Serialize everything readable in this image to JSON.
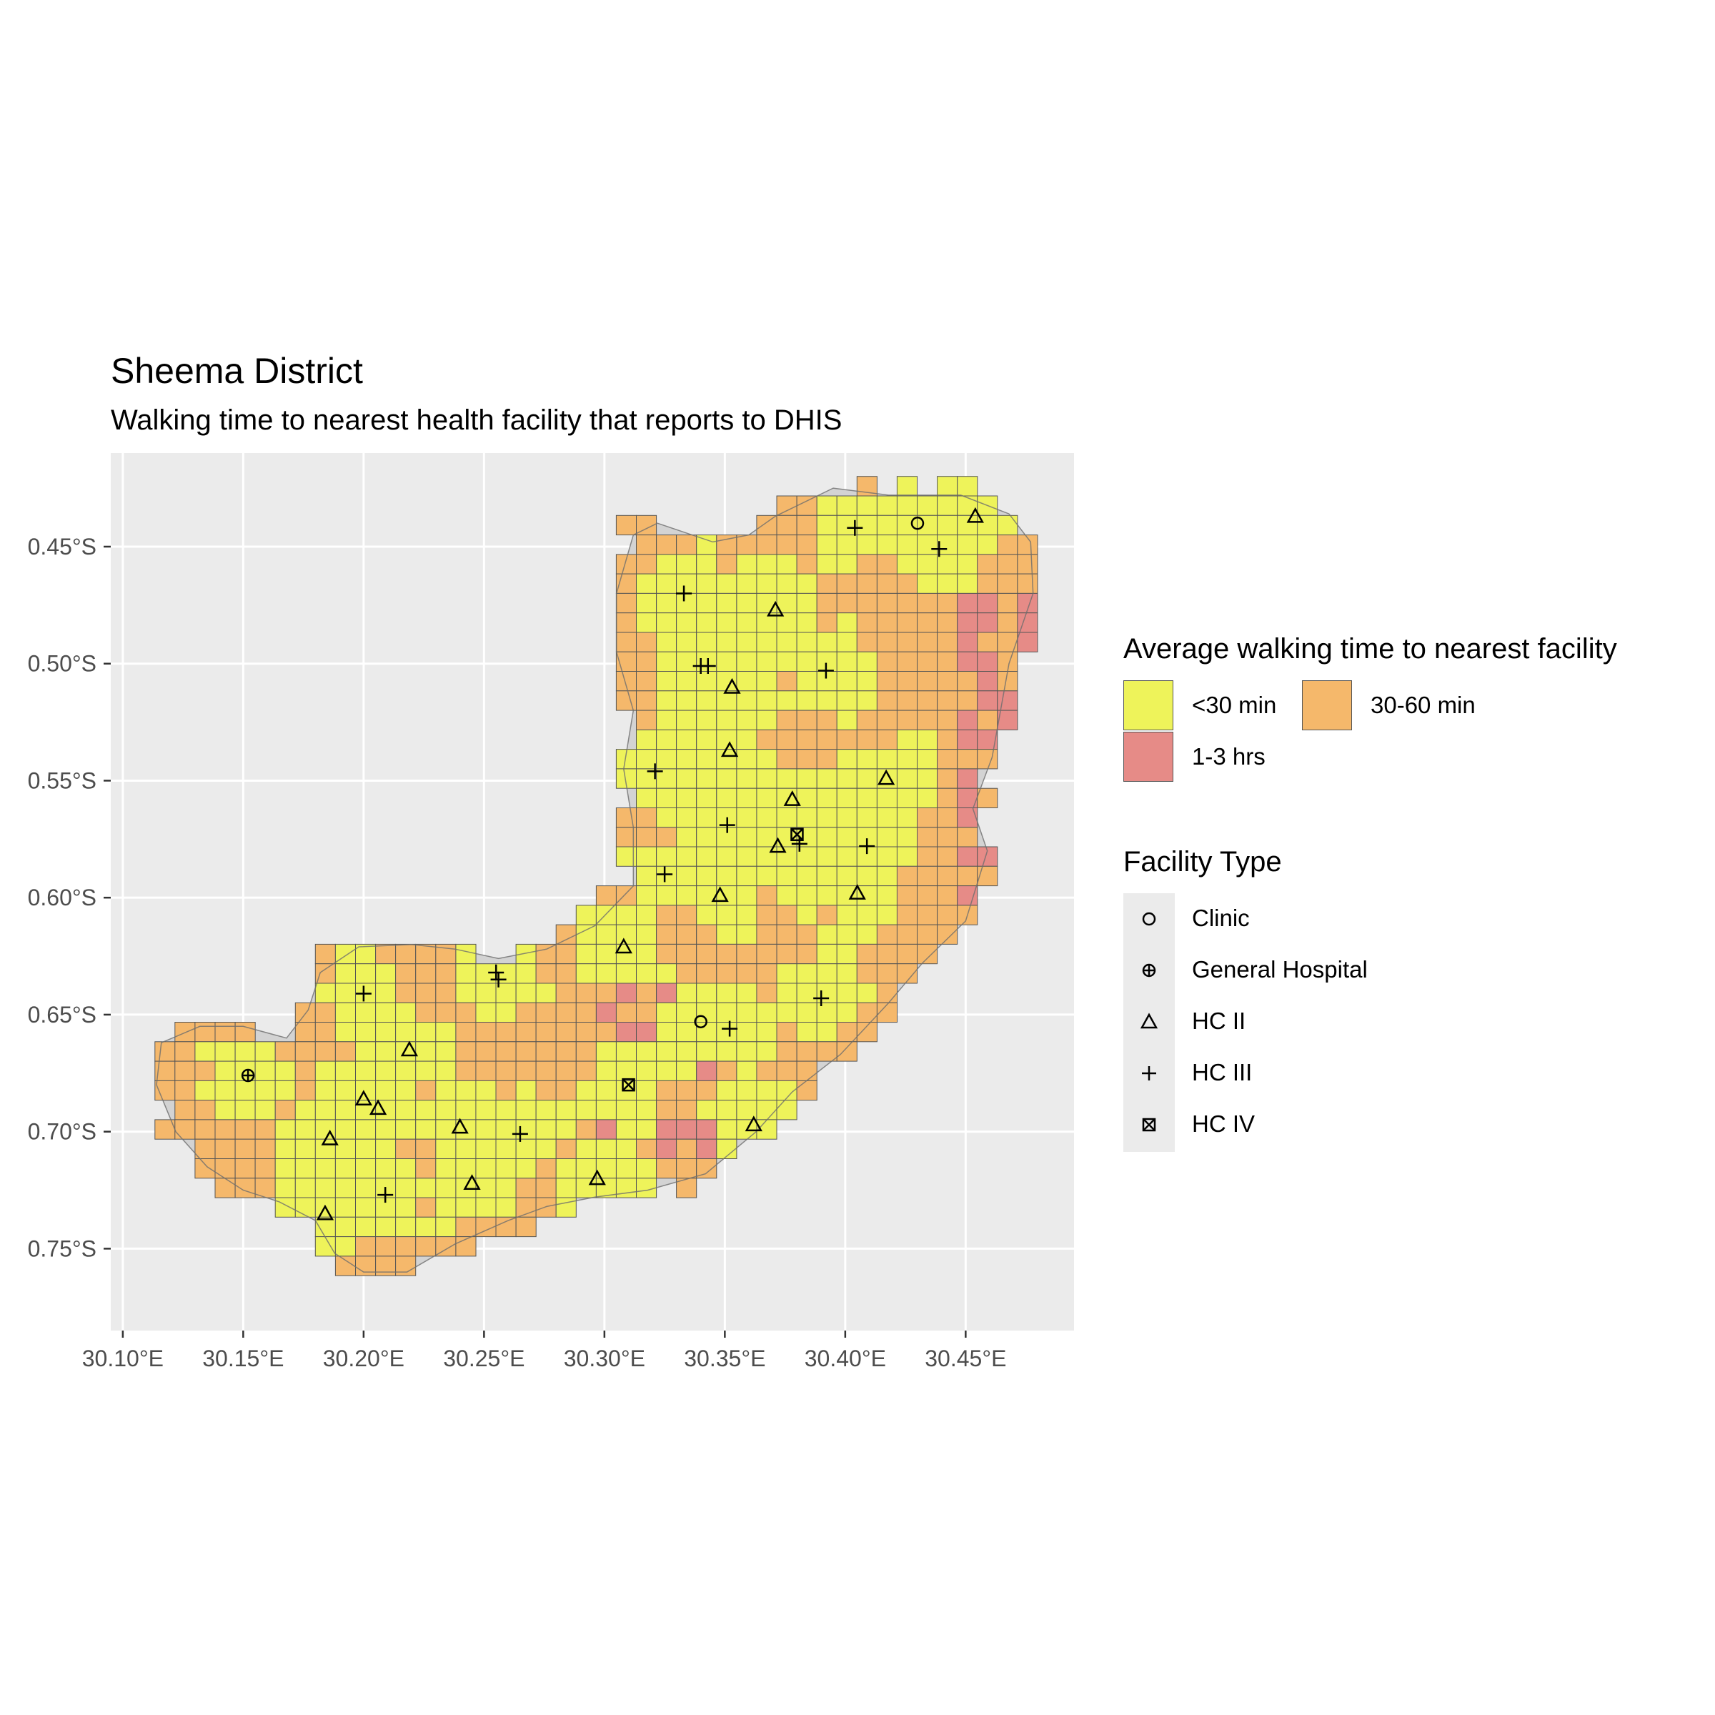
{
  "title": "Sheema District",
  "subtitle": "Walking time to nearest health facility that reports to DHIS",
  "chart_data": {
    "type": "heatmap",
    "map": "grid of square cells colored by walking-time class, with district outline and facility point symbols",
    "xlim": [
      30.095,
      30.495
    ],
    "ylim": [
      -0.785,
      -0.41
    ],
    "x_ticks": [
      {
        "value": 30.1,
        "label": "30.10°E"
      },
      {
        "value": 30.15,
        "label": "30.15°E"
      },
      {
        "value": 30.2,
        "label": "30.20°E"
      },
      {
        "value": 30.25,
        "label": "30.25°E"
      },
      {
        "value": 30.3,
        "label": "30.30°E"
      },
      {
        "value": 30.35,
        "label": "30.35°E"
      },
      {
        "value": 30.4,
        "label": "30.40°E"
      },
      {
        "value": 30.45,
        "label": "30.45°E"
      }
    ],
    "y_ticks": [
      {
        "value": -0.45,
        "label": "0.45°S"
      },
      {
        "value": -0.5,
        "label": "0.50°S"
      },
      {
        "value": -0.55,
        "label": "0.55°S"
      },
      {
        "value": -0.6,
        "label": "0.60°S"
      },
      {
        "value": -0.65,
        "label": "0.65°S"
      },
      {
        "value": -0.7,
        "label": "0.70°S"
      },
      {
        "value": -0.75,
        "label": "0.75°S"
      }
    ],
    "grid": true,
    "legend_placement": "right",
    "fill_legend": {
      "title": "Average walking time to nearest facility",
      "classes": [
        {
          "key": "lt30",
          "label": "<30 min",
          "color": "#eef35a"
        },
        {
          "key": "30to60",
          "label": "30-60 min",
          "color": "#f5b86b"
        },
        {
          "key": "1to3",
          "label": "1-3 hrs",
          "color": "#e68b87"
        }
      ]
    },
    "shape_legend": {
      "title": "Facility Type",
      "items": [
        {
          "key": "clinic",
          "label": "Clinic",
          "icon": "circle-icon"
        },
        {
          "key": "general",
          "label": "General Hospital",
          "icon": "circle-plus-icon"
        },
        {
          "key": "hc2",
          "label": "HC II",
          "icon": "triangle-icon"
        },
        {
          "key": "hc3",
          "label": "HC III",
          "icon": "plus-icon"
        },
        {
          "key": "hc4",
          "label": "HC IV",
          "icon": "square-cross-icon"
        }
      ]
    },
    "colors": {
      "panel": "#ebebeb",
      "gridline": "#ffffff",
      "no_data": "#d3d3d3",
      "cell_border": "#555555",
      "outline": "#6e6e6e"
    },
    "district_outline": [
      [
        30.371,
        -0.437
      ],
      [
        30.395,
        -0.425
      ],
      [
        30.418,
        -0.428
      ],
      [
        30.448,
        -0.428
      ],
      [
        30.468,
        -0.436
      ],
      [
        30.477,
        -0.448
      ],
      [
        30.478,
        -0.47
      ],
      [
        30.468,
        -0.5
      ],
      [
        30.461,
        -0.54
      ],
      [
        30.453,
        -0.562
      ],
      [
        30.459,
        -0.58
      ],
      [
        30.45,
        -0.61
      ],
      [
        30.432,
        -0.628
      ],
      [
        30.418,
        -0.645
      ],
      [
        30.398,
        -0.667
      ],
      [
        30.378,
        -0.683
      ],
      [
        30.363,
        -0.7
      ],
      [
        30.342,
        -0.718
      ],
      [
        30.318,
        -0.725
      ],
      [
        30.296,
        -0.728
      ],
      [
        30.276,
        -0.732
      ],
      [
        30.26,
        -0.738
      ],
      [
        30.238,
        -0.748
      ],
      [
        30.218,
        -0.76
      ],
      [
        30.2,
        -0.76
      ],
      [
        30.188,
        -0.752
      ],
      [
        30.18,
        -0.738
      ],
      [
        30.165,
        -0.73
      ],
      [
        30.15,
        -0.725
      ],
      [
        30.135,
        -0.715
      ],
      [
        30.122,
        -0.7
      ],
      [
        30.114,
        -0.68
      ],
      [
        30.116,
        -0.662
      ],
      [
        30.132,
        -0.655
      ],
      [
        30.15,
        -0.655
      ],
      [
        30.168,
        -0.66
      ],
      [
        30.177,
        -0.648
      ],
      [
        30.182,
        -0.632
      ],
      [
        30.198,
        -0.621
      ],
      [
        30.22,
        -0.62
      ],
      [
        30.238,
        -0.622
      ],
      [
        30.256,
        -0.626
      ],
      [
        30.276,
        -0.622
      ],
      [
        30.296,
        -0.612
      ],
      [
        30.312,
        -0.595
      ],
      [
        30.312,
        -0.57
      ],
      [
        30.308,
        -0.545
      ],
      [
        30.312,
        -0.52
      ],
      [
        30.305,
        -0.495
      ],
      [
        30.305,
        -0.47
      ],
      [
        30.312,
        -0.445
      ],
      [
        30.322,
        -0.44
      ],
      [
        30.345,
        -0.448
      ],
      [
        30.36,
        -0.445
      ]
    ],
    "grid_cells": {
      "cell_size_deg": 0.00833,
      "notes": "Cells inside outline mostly <30 min in the north-west, center and western lobe; 30-60 min around the edges and in the central-south belt; 1-3 hrs in pockets on the east edge (30.45–30.48°E, 0.47–0.63°S) and the south-central band (30.30–30.34°E, 0.64–0.71°S)."
    },
    "facilities": [
      {
        "type": "clinic",
        "lon": 30.43,
        "lat": -0.44
      },
      {
        "type": "clinic",
        "lon": 30.34,
        "lat": -0.653
      },
      {
        "type": "general",
        "lon": 30.152,
        "lat": -0.676
      },
      {
        "type": "hc2",
        "lon": 30.454,
        "lat": -0.437
      },
      {
        "type": "hc2",
        "lon": 30.371,
        "lat": -0.477
      },
      {
        "type": "hc2",
        "lon": 30.353,
        "lat": -0.51
      },
      {
        "type": "hc2",
        "lon": 30.352,
        "lat": -0.537
      },
      {
        "type": "hc2",
        "lon": 30.417,
        "lat": -0.549
      },
      {
        "type": "hc2",
        "lon": 30.378,
        "lat": -0.558
      },
      {
        "type": "hc2",
        "lon": 30.372,
        "lat": -0.578
      },
      {
        "type": "hc2",
        "lon": 30.348,
        "lat": -0.599
      },
      {
        "type": "hc2",
        "lon": 30.405,
        "lat": -0.598
      },
      {
        "type": "hc2",
        "lon": 30.308,
        "lat": -0.621
      },
      {
        "type": "hc2",
        "lon": 30.219,
        "lat": -0.665
      },
      {
        "type": "hc2",
        "lon": 30.2,
        "lat": -0.686
      },
      {
        "type": "hc2",
        "lon": 30.206,
        "lat": -0.69
      },
      {
        "type": "hc2",
        "lon": 30.186,
        "lat": -0.703
      },
      {
        "type": "hc2",
        "lon": 30.24,
        "lat": -0.698
      },
      {
        "type": "hc2",
        "lon": 30.362,
        "lat": -0.697
      },
      {
        "type": "hc2",
        "lon": 30.245,
        "lat": -0.722
      },
      {
        "type": "hc2",
        "lon": 30.297,
        "lat": -0.72
      },
      {
        "type": "hc2",
        "lon": 30.184,
        "lat": -0.735
      },
      {
        "type": "hc3",
        "lon": 30.404,
        "lat": -0.442
      },
      {
        "type": "hc3",
        "lon": 30.439,
        "lat": -0.451
      },
      {
        "type": "hc3",
        "lon": 30.333,
        "lat": -0.47
      },
      {
        "type": "hc3",
        "lon": 30.34,
        "lat": -0.501
      },
      {
        "type": "hc3",
        "lon": 30.343,
        "lat": -0.501
      },
      {
        "type": "hc3",
        "lon": 30.392,
        "lat": -0.503
      },
      {
        "type": "hc3",
        "lon": 30.321,
        "lat": -0.546
      },
      {
        "type": "hc3",
        "lon": 30.351,
        "lat": -0.569
      },
      {
        "type": "hc3",
        "lon": 30.381,
        "lat": -0.577
      },
      {
        "type": "hc3",
        "lon": 30.409,
        "lat": -0.578
      },
      {
        "type": "hc3",
        "lon": 30.325,
        "lat": -0.59
      },
      {
        "type": "hc3",
        "lon": 30.255,
        "lat": -0.632
      },
      {
        "type": "hc3",
        "lon": 30.256,
        "lat": -0.635
      },
      {
        "type": "hc3",
        "lon": 30.2,
        "lat": -0.641
      },
      {
        "type": "hc3",
        "lon": 30.39,
        "lat": -0.643
      },
      {
        "type": "hc3",
        "lon": 30.352,
        "lat": -0.656
      },
      {
        "type": "hc3",
        "lon": 30.265,
        "lat": -0.701
      },
      {
        "type": "hc3",
        "lon": 30.209,
        "lat": -0.727
      },
      {
        "type": "hc4",
        "lon": 30.38,
        "lat": -0.573
      },
      {
        "type": "hc4",
        "lon": 30.31,
        "lat": -0.68
      }
    ]
  }
}
